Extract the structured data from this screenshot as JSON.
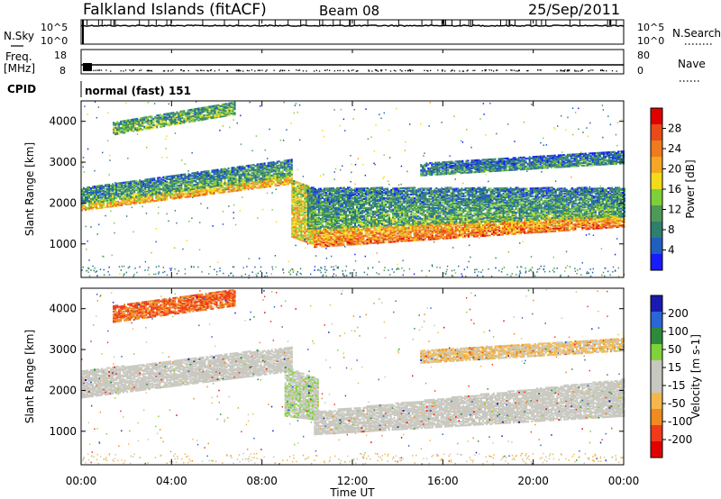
{
  "header": {
    "title": "Falkland Islands (fitACF)",
    "beam": "Beam 08",
    "date": "25/Sep/2011"
  },
  "noise_panel": {
    "left_label": "N.Sky",
    "right_label": "N.Search",
    "left_ticks": [
      "10^5",
      "10^0"
    ],
    "right_ticks": [
      "10^5",
      "10^0"
    ]
  },
  "freq_panel": {
    "left_label": "Freq.",
    "left_unit": "[MHz]",
    "right_label": "Nave",
    "left_ticks": [
      "18",
      "8"
    ],
    "right_ticks": [
      "80",
      "0"
    ]
  },
  "cpid": {
    "label": "CPID",
    "mode": "normal (fast) 151"
  },
  "time_axis": {
    "label": "Time UT",
    "ticks": [
      "00:00",
      "04:00",
      "08:00",
      "12:00",
      "16:00",
      "20:00",
      "00:00"
    ]
  },
  "chart_data": [
    {
      "type": "heatmap",
      "name": "power",
      "ylabel": "Slant Range [km]",
      "yticks": [
        "4000",
        "3000",
        "2000",
        "1000"
      ],
      "ylim": [
        180,
        4500
      ],
      "colorbar_label": "Power [dB]",
      "colorbar_ticks": [
        "28",
        "24",
        "20",
        "16",
        "12",
        "8",
        "4"
      ],
      "colorbar_range": [
        0,
        32
      ],
      "colors": [
        "#1a1aff",
        "#1f5fc0",
        "#2e7f6e",
        "#4d9a58",
        "#7fcf3a",
        "#f2dc1a",
        "#f5a623",
        "#f07a1e",
        "#e84a1a",
        "#e00000"
      ],
      "echo_bands": [
        {
          "t_start": 0.0,
          "t_end": 9.3,
          "range_low": 1850,
          "range_high": 2000,
          "range_low_end": 2500,
          "range_high_end": 2700,
          "db": 22
        },
        {
          "t_start": 0.0,
          "t_end": 9.3,
          "range_low": 2000,
          "range_high": 2400,
          "range_low_end": 2700,
          "range_high_end": 3100,
          "db": 12
        },
        {
          "t_start": 9.3,
          "t_end": 10.3,
          "range_low": 1200,
          "range_high": 2600,
          "range_low_end": 1000,
          "range_high_end": 2400,
          "db": 20
        },
        {
          "t_start": 10.3,
          "t_end": 24.0,
          "range_low": 950,
          "range_high": 1400,
          "range_low_end": 1450,
          "range_high_end": 1750,
          "db": 25
        },
        {
          "t_start": 10.0,
          "t_end": 24.0,
          "range_low": 1400,
          "range_high": 2400,
          "range_low_end": 1700,
          "range_high_end": 2400,
          "db": 12
        },
        {
          "t_start": 1.4,
          "t_end": 6.8,
          "range_low": 3700,
          "range_high": 4000,
          "range_low_end": 4200,
          "range_high_end": 4500,
          "db": 14
        },
        {
          "t_start": 15.0,
          "t_end": 24.0,
          "range_low": 2700,
          "range_high": 3000,
          "range_low_end": 3000,
          "range_high_end": 3300,
          "db": 10
        }
      ]
    },
    {
      "type": "heatmap",
      "name": "velocity",
      "ylabel": "Slant Range [km]",
      "yticks": [
        "4000",
        "3000",
        "2000",
        "1000"
      ],
      "ylim": [
        180,
        4500
      ],
      "colorbar_label": "Velocity [m s-1]",
      "colorbar_ticks": [
        "200",
        "100",
        "50",
        "15",
        "-15",
        "-50",
        "-100",
        "-200"
      ],
      "colorbar_range": [
        -250,
        250
      ],
      "colors": [
        "#e00000",
        "#f03a1a",
        "#f08a22",
        "#f4b84a",
        "#c8c8c0",
        "#c8c8c0",
        "#7fd23a",
        "#2e8a3a",
        "#2a66d6",
        "#1a1ab0"
      ],
      "echo_bands": [
        {
          "t_start": 0.0,
          "t_end": 9.3,
          "range_low": 1850,
          "range_high": 2500,
          "range_low_end": 2500,
          "range_high_end": 3100,
          "v": 0
        },
        {
          "t_start": 9.0,
          "t_end": 10.5,
          "range_low": 1400,
          "range_high": 2600,
          "range_low_end": 1300,
          "range_high_end": 2300,
          "v": 30
        },
        {
          "t_start": 10.3,
          "t_end": 24.0,
          "range_low": 950,
          "range_high": 1500,
          "range_low_end": 1400,
          "range_high_end": 2300,
          "v": 0
        },
        {
          "t_start": 1.4,
          "t_end": 6.8,
          "range_low": 3700,
          "range_high": 4100,
          "range_low_end": 4100,
          "range_high_end": 4500,
          "v": -150
        },
        {
          "t_start": 15.0,
          "t_end": 24.0,
          "range_low": 2700,
          "range_high": 3000,
          "range_low_end": 3000,
          "range_high_end": 3300,
          "v": -60
        }
      ]
    }
  ]
}
